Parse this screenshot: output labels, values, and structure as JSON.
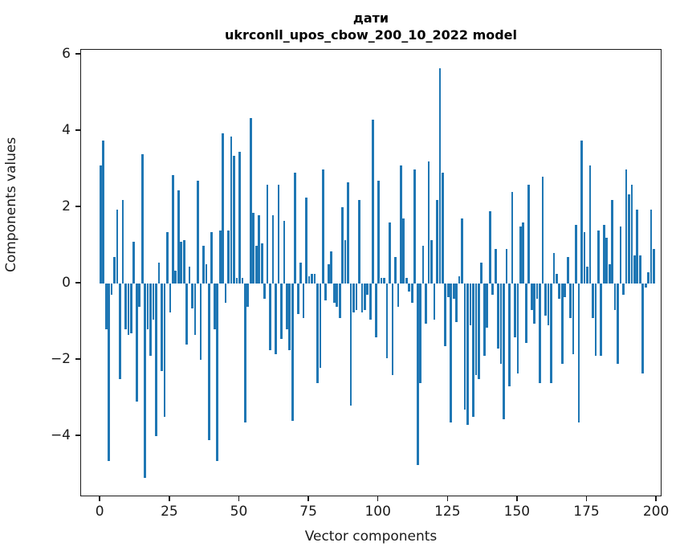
{
  "title": {
    "line1": "дати",
    "line2": "ukrconll_upos_cbow_200_10_2022 model"
  },
  "chart_data": {
    "type": "bar",
    "title": "дати\nukrconll_upos_cbow_200_10_2022 model",
    "xlabel": "Vector components",
    "ylabel": "Components values",
    "xticks": [
      0,
      25,
      50,
      75,
      100,
      125,
      150,
      175,
      200
    ],
    "yticks": [
      -4,
      -2,
      0,
      2,
      4,
      6
    ],
    "xlim": [
      -7,
      202
    ],
    "ylim": [
      -5.6,
      6.13
    ],
    "grid": false,
    "legend": null,
    "bar_color": "#1f77b4",
    "categories_note": "x = vector component index 0..199",
    "values": [
      3.1,
      3.75,
      -1.2,
      -4.65,
      -0.3,
      0.7,
      1.95,
      -2.5,
      2.2,
      -1.2,
      -1.35,
      -1.3,
      1.1,
      -3.1,
      -0.6,
      3.4,
      -5.1,
      -1.2,
      -1.9,
      -0.95,
      -4.0,
      0.55,
      -2.3,
      -3.5,
      1.35,
      -0.75,
      2.85,
      0.35,
      2.45,
      1.1,
      1.15,
      -1.6,
      0.45,
      -0.65,
      -1.35,
      2.7,
      -2.0,
      1.0,
      0.5,
      -4.1,
      1.35,
      -1.2,
      -4.65,
      1.4,
      3.95,
      -0.5,
      1.4,
      3.85,
      3.35,
      0.15,
      3.45,
      0.15,
      -3.65,
      -0.6,
      4.35,
      1.85,
      1.0,
      1.8,
      1.05,
      -0.4,
      2.6,
      -1.75,
      1.8,
      -1.85,
      2.6,
      -1.45,
      1.65,
      -1.2,
      -1.75,
      -3.6,
      2.9,
      -0.8,
      0.55,
      -0.9,
      2.25,
      0.2,
      0.25,
      0.25,
      -2.6,
      -2.2,
      3.0,
      -0.45,
      0.5,
      0.85,
      -0.5,
      -0.6,
      -0.9,
      2.0,
      1.15,
      2.65,
      -3.2,
      -0.75,
      -0.7,
      2.2,
      -0.75,
      -0.7,
      -0.3,
      -0.95,
      4.3,
      -1.4,
      2.7,
      0.15,
      0.15,
      -1.95,
      1.6,
      -2.4,
      0.7,
      -0.6,
      3.1,
      1.7,
      0.15,
      -0.2,
      -0.5,
      3.0,
      -4.75,
      -2.6,
      1.0,
      -1.05,
      3.2,
      1.15,
      -0.95,
      2.2,
      5.65,
      2.9,
      -1.65,
      -0.35,
      -3.65,
      -0.4,
      -1.0,
      0.2,
      1.7,
      -3.3,
      -3.7,
      -1.1,
      -3.5,
      -2.4,
      -2.5,
      0.55,
      -1.9,
      -1.15,
      1.9,
      -0.3,
      0.9,
      -1.7,
      -2.1,
      -3.55,
      0.9,
      -2.7,
      2.4,
      -1.4,
      -2.35,
      1.5,
      1.6,
      -1.55,
      2.6,
      -0.7,
      -1.05,
      -0.4,
      -2.6,
      2.8,
      -0.85,
      -1.1,
      -2.6,
      0.8,
      0.25,
      -0.4,
      -2.1,
      -0.35,
      0.7,
      -0.9,
      -1.85,
      1.55,
      -3.65,
      3.75,
      1.35,
      0.45,
      3.1,
      -0.9,
      -1.9,
      1.4,
      -1.9,
      1.55,
      1.2,
      0.5,
      2.2,
      -0.7,
      -2.1,
      1.5,
      -0.3,
      3.0,
      2.35,
      2.6,
      0.75,
      1.95,
      0.75,
      -2.35,
      -0.1,
      0.3,
      1.95,
      0.9
    ]
  }
}
